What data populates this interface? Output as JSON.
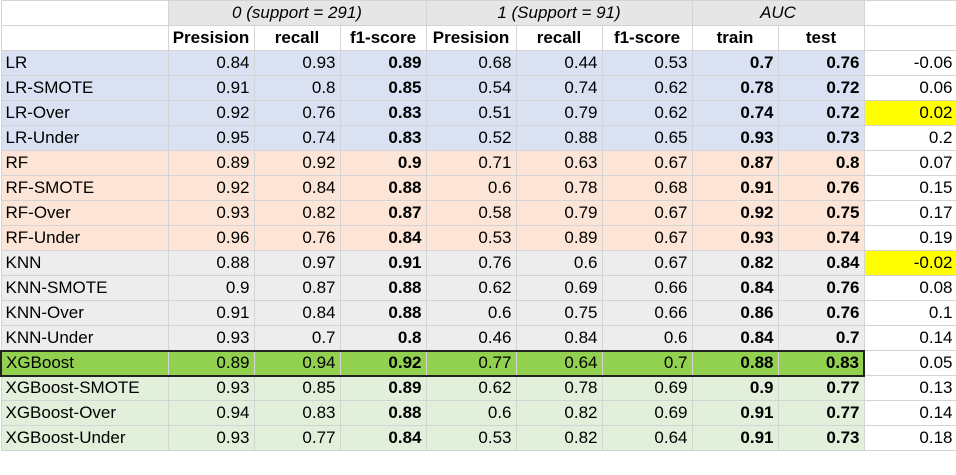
{
  "groups": {
    "class0": "0 (support = 291)",
    "class1": "1 (Support = 91)",
    "auc": "AUC"
  },
  "headers": [
    "Presision",
    "recall",
    "f1-score",
    "Presision",
    "recall",
    "f1-score",
    "train",
    "test"
  ],
  "rows": [
    {
      "name": "LR",
      "p0": "0.84",
      "r0": "0.93",
      "f0": "0.89",
      "p1": "0.68",
      "r1": "0.44",
      "f1": "0.53",
      "train": "0.7",
      "test": "0.76",
      "diff": "-0.06"
    },
    {
      "name": "LR-SMOTE",
      "p0": "0.91",
      "r0": "0.8",
      "f0": "0.85",
      "p1": "0.54",
      "r1": "0.74",
      "f1": "0.62",
      "train": "0.78",
      "test": "0.72",
      "diff": "0.06"
    },
    {
      "name": "LR-Over",
      "p0": "0.92",
      "r0": "0.76",
      "f0": "0.83",
      "p1": "0.51",
      "r1": "0.79",
      "f1": "0.62",
      "train": "0.74",
      "test": "0.72",
      "diff": "0.02"
    },
    {
      "name": "LR-Under",
      "p0": "0.95",
      "r0": "0.74",
      "f0": "0.83",
      "p1": "0.52",
      "r1": "0.88",
      "f1": "0.65",
      "train": "0.93",
      "test": "0.73",
      "diff": "0.2"
    },
    {
      "name": "RF",
      "p0": "0.89",
      "r0": "0.92",
      "f0": "0.9",
      "p1": "0.71",
      "r1": "0.63",
      "f1": "0.67",
      "train": "0.87",
      "test": "0.8",
      "diff": "0.07"
    },
    {
      "name": "RF-SMOTE",
      "p0": "0.92",
      "r0": "0.84",
      "f0": "0.88",
      "p1": "0.6",
      "r1": "0.78",
      "f1": "0.68",
      "train": "0.91",
      "test": "0.76",
      "diff": "0.15"
    },
    {
      "name": "RF-Over",
      "p0": "0.93",
      "r0": "0.82",
      "f0": "0.87",
      "p1": "0.58",
      "r1": "0.79",
      "f1": "0.67",
      "train": "0.92",
      "test": "0.75",
      "diff": "0.17"
    },
    {
      "name": "RF-Under",
      "p0": "0.96",
      "r0": "0.76",
      "f0": "0.84",
      "p1": "0.53",
      "r1": "0.89",
      "f1": "0.67",
      "train": "0.93",
      "test": "0.74",
      "diff": "0.19"
    },
    {
      "name": "KNN",
      "p0": "0.88",
      "r0": "0.97",
      "f0": "0.91",
      "p1": "0.76",
      "r1": "0.6",
      "f1": "0.67",
      "train": "0.82",
      "test": "0.84",
      "diff": "-0.02"
    },
    {
      "name": "KNN-SMOTE",
      "p0": "0.9",
      "r0": "0.87",
      "f0": "0.88",
      "p1": "0.62",
      "r1": "0.69",
      "f1": "0.66",
      "train": "0.84",
      "test": "0.76",
      "diff": "0.08"
    },
    {
      "name": "KNN-Over",
      "p0": "0.91",
      "r0": "0.84",
      "f0": "0.88",
      "p1": "0.6",
      "r1": "0.75",
      "f1": "0.66",
      "train": "0.86",
      "test": "0.76",
      "diff": "0.1"
    },
    {
      "name": "KNN-Under",
      "p0": "0.93",
      "r0": "0.7",
      "f0": "0.8",
      "p1": "0.46",
      "r1": "0.84",
      "f1": "0.6",
      "train": "0.84",
      "test": "0.7",
      "diff": "0.14"
    },
    {
      "name": "XGBoost",
      "p0": "0.89",
      "r0": "0.94",
      "f0": "0.92",
      "p1": "0.77",
      "r1": "0.64",
      "f1": "0.7",
      "train": "0.88",
      "test": "0.83",
      "diff": "0.05"
    },
    {
      "name": "XGBoost-SMOTE",
      "p0": "0.93",
      "r0": "0.85",
      "f0": "0.89",
      "p1": "0.62",
      "r1": "0.78",
      "f1": "0.69",
      "train": "0.9",
      "test": "0.77",
      "diff": "0.13"
    },
    {
      "name": "XGBoost-Over",
      "p0": "0.94",
      "r0": "0.83",
      "f0": "0.88",
      "p1": "0.6",
      "r1": "0.82",
      "f1": "0.69",
      "train": "0.91",
      "test": "0.77",
      "diff": "0.14"
    },
    {
      "name": "XGBoost-Under",
      "p0": "0.93",
      "r0": "0.77",
      "f0": "0.84",
      "p1": "0.53",
      "r1": "0.82",
      "f1": "0.64",
      "train": "0.91",
      "test": "0.73",
      "diff": "0.18"
    }
  ],
  "colors": {
    "lr": "#d9e1f2",
    "rf": "#fce4d6",
    "knn": "#ededed",
    "xgb": "#e2efda",
    "best": "#92d050",
    "highlight": "#ffff00",
    "group_header": "#e7e6e6"
  }
}
